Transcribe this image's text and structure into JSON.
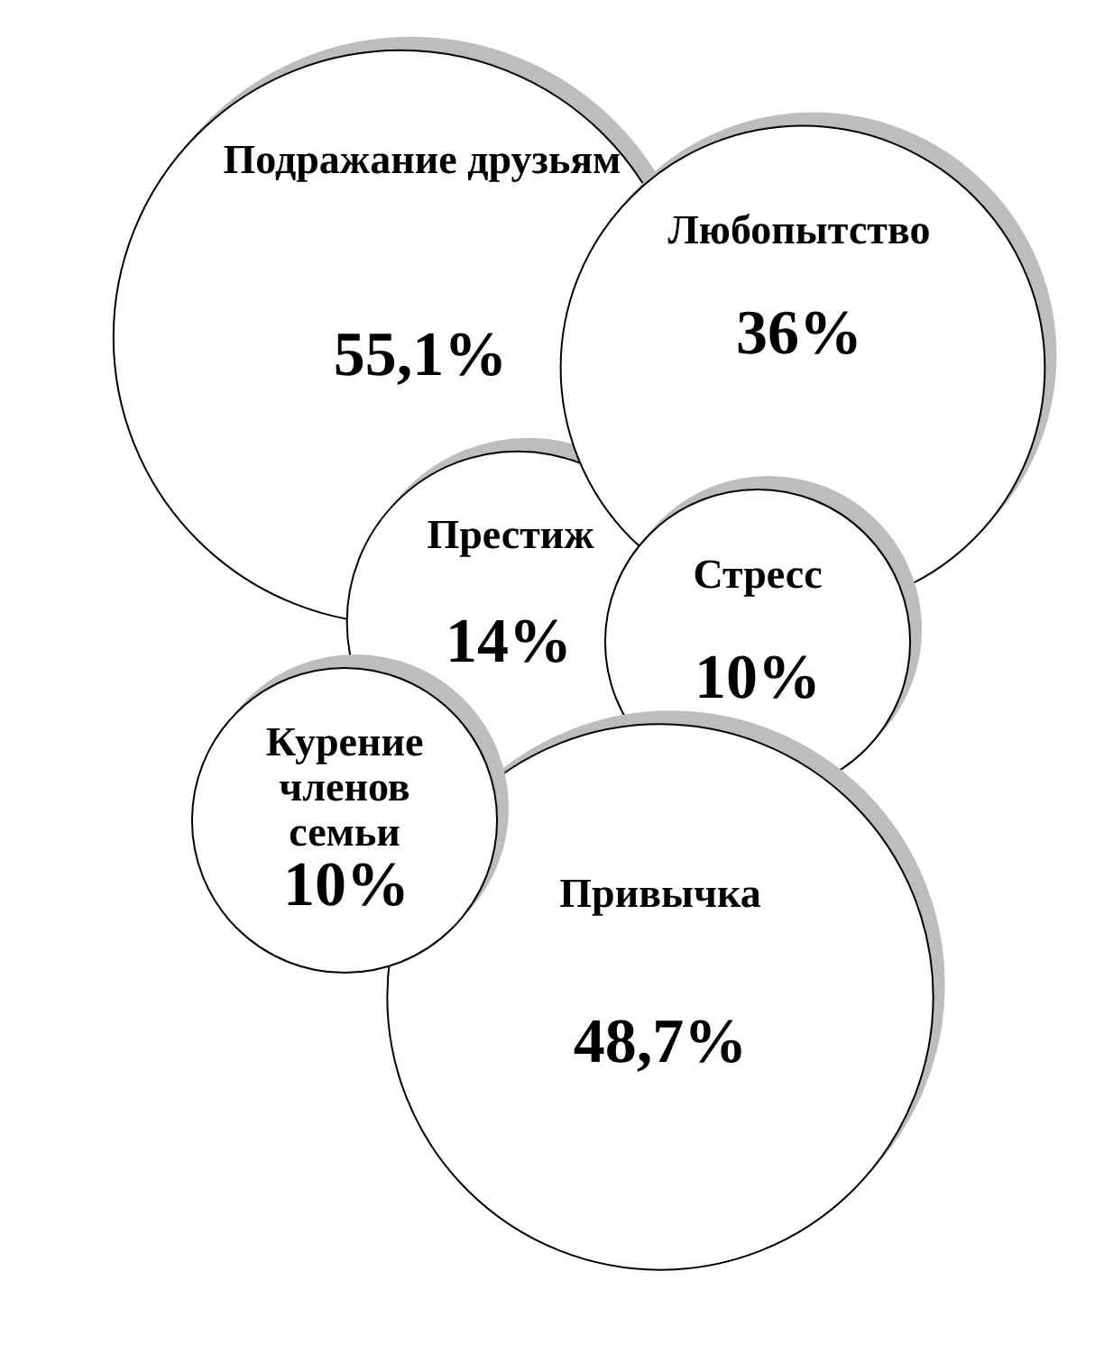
{
  "chart_data": {
    "type": "other",
    "categories": [
      "Подражание друзьям",
      "Любопытство",
      "Престиж",
      "Стресс",
      "Курение членов семьи",
      "Привычка"
    ],
    "values": [
      55.1,
      36,
      14,
      10,
      10,
      48.7
    ],
    "value_labels": [
      "55,1%",
      "36%",
      "14%",
      "10%",
      "10%",
      "48,7%"
    ],
    "color": "#ffffff"
  }
}
